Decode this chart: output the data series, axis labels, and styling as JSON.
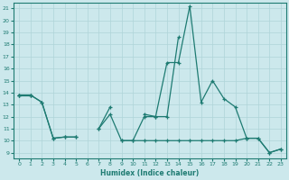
{
  "xlabel": "Humidex (Indice chaleur)",
  "xlim": [
    -0.5,
    23.5
  ],
  "ylim": [
    8.5,
    21.5
  ],
  "xticks": [
    0,
    1,
    2,
    3,
    4,
    5,
    6,
    7,
    8,
    9,
    10,
    11,
    12,
    13,
    14,
    15,
    16,
    17,
    18,
    19,
    20,
    21,
    22,
    23
  ],
  "yticks": [
    9,
    10,
    11,
    12,
    13,
    14,
    15,
    16,
    17,
    18,
    19,
    20,
    21
  ],
  "bg_color": "#cce8ec",
  "line_color": "#1e7b72",
  "grid_color": "#afd4d8",
  "line1_y": [
    13.8,
    13.8,
    13.2,
    10.2,
    10.3,
    10.3,
    null,
    11.0,
    12.8,
    null,
    null,
    12.2,
    12.0,
    16.5,
    16.5,
    21.2,
    13.2,
    15.0,
    13.5,
    12.8,
    10.2,
    10.2,
    9.0,
    9.3
  ],
  "line2_y": [
    13.8,
    13.8,
    13.2,
    10.2,
    10.3,
    10.3,
    null,
    11.0,
    12.2,
    10.0,
    10.0,
    12.0,
    12.0,
    12.0,
    18.6,
    null,
    null,
    null,
    null,
    null,
    null,
    null,
    null,
    null
  ],
  "line3_y": [
    13.8,
    13.8,
    null,
    null,
    null,
    null,
    null,
    null,
    null,
    10.0,
    10.0,
    10.0,
    10.0,
    10.0,
    10.0,
    10.0,
    10.0,
    10.0,
    10.0,
    10.0,
    10.2,
    10.2,
    9.0,
    9.3
  ]
}
